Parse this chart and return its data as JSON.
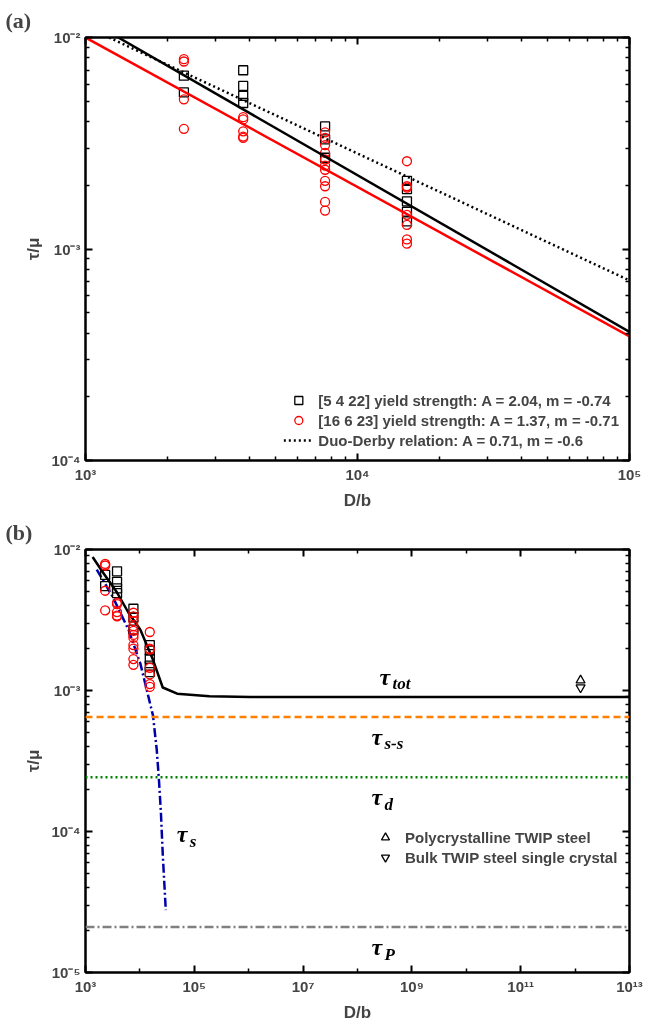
{
  "chart_data": [
    {
      "type": "scatter",
      "title": "(a)",
      "xlabel": "D/b",
      "ylabel": "τ/μ",
      "log": "xy",
      "legend": "bottom right",
      "xlim": [
        1000,
        100000
      ],
      "ylim": [
        0.0001,
        0.01
      ],
      "xticks": [
        {
          "value": 1000,
          "label": "10³"
        },
        {
          "value": 2000,
          "label": null
        },
        {
          "value": 3000,
          "label": null
        },
        {
          "value": 4000,
          "label": null
        },
        {
          "value": 5000,
          "label": null
        },
        {
          "value": 6000,
          "label": null
        },
        {
          "value": 7000,
          "label": null
        },
        {
          "value": 8000,
          "label": null
        },
        {
          "value": 9000,
          "label": null
        },
        {
          "value": 10000,
          "label": "10⁴"
        },
        {
          "value": 20000,
          "label": null
        },
        {
          "value": 30000,
          "label": null
        },
        {
          "value": 40000,
          "label": null
        },
        {
          "value": 50000,
          "label": null
        },
        {
          "value": 60000,
          "label": null
        },
        {
          "value": 70000,
          "label": null
        },
        {
          "value": 80000,
          "label": null
        },
        {
          "value": 90000,
          "label": null
        },
        {
          "value": 100000,
          "label": "10⁵"
        }
      ],
      "yticks": [
        {
          "value": 0.0001,
          "label": "10⁻⁴"
        },
        {
          "value": 0.0002,
          "label": null
        },
        {
          "value": 0.0003,
          "label": null
        },
        {
          "value": 0.0004,
          "label": null
        },
        {
          "value": 0.0005,
          "label": null
        },
        {
          "value": 0.0006,
          "label": null
        },
        {
          "value": 0.0007,
          "label": null
        },
        {
          "value": 0.0008,
          "label": null
        },
        {
          "value": 0.0009,
          "label": null
        },
        {
          "value": 0.001,
          "label": "10⁻³"
        },
        {
          "value": 0.002,
          "label": null
        },
        {
          "value": 0.003,
          "label": null
        },
        {
          "value": 0.004,
          "label": null
        },
        {
          "value": 0.005,
          "label": null
        },
        {
          "value": 0.006,
          "label": null
        },
        {
          "value": 0.007,
          "label": null
        },
        {
          "value": 0.008,
          "label": null
        },
        {
          "value": 0.009,
          "label": null
        },
        {
          "value": 0.01,
          "label": "10⁻²"
        }
      ],
      "series": [
        {
          "name": "[5 4 22] yield strength: A = 2.04, m = -0.74",
          "color": "#000000",
          "marker": "square",
          "x": [
            2300,
            2300,
            3800,
            3800,
            3800,
            3800,
            7600,
            7600,
            7600,
            15200,
            15200,
            15200,
            15200,
            15200
          ],
          "values": [
            0.0066,
            0.0055,
            0.007,
            0.0059,
            0.0053,
            0.0049,
            0.0038,
            0.0033,
            0.0027,
            0.0021,
            0.00192,
            0.00168,
            0.0015,
            0.00135
          ]
        },
        {
          "name": "[16 6 23] yield strength: A = 1.37, m = -0.71",
          "color": "#ff0000",
          "marker": "circle",
          "x": [
            2300,
            2300,
            2300,
            2300,
            3800,
            3800,
            3800,
            3800,
            3800,
            7600,
            7600,
            7600,
            7600,
            7600,
            7600,
            7600,
            7600,
            7600,
            7600,
            7600,
            15200,
            15200,
            15200,
            15200,
            15200,
            15200,
            15200
          ],
          "values": [
            0.0079,
            0.0077,
            0.0051,
            0.0037,
            0.0042,
            0.0041,
            0.0036,
            0.0034,
            0.00335,
            0.00356,
            0.00335,
            0.0031,
            0.00285,
            0.00265,
            0.00248,
            0.00237,
            0.0021,
            0.00198,
            0.00167,
            0.00152,
            0.0026,
            0.00198,
            0.00195,
            0.00145,
            0.0013,
            0.00111,
            0.00106
          ]
        },
        {
          "type": "line",
          "color": "#000000",
          "line_style": "solid",
          "x": [
            1320,
            100000
          ],
          "values": [
            0.01,
            0.000406
          ]
        },
        {
          "type": "line",
          "color": "#ff0000",
          "line_style": "solid",
          "x": [
            1000,
            100000
          ],
          "values": [
            0.01,
            0.000386
          ]
        },
        {
          "type": "line",
          "name": "Duo-Derby relation: A = 0.71, m = -0.6",
          "color": "#000000",
          "line_style": "dotted",
          "x": [
            1220,
            100000
          ],
          "values": [
            0.01,
            0.00071
          ]
        }
      ]
    },
    {
      "type": "scatter",
      "title": "(b)",
      "xlabel": "D/b",
      "ylabel": "τ/μ",
      "log": "xy",
      "legend": "right",
      "xlim": [
        1000,
        10000000000000
      ],
      "ylim": [
        1e-05,
        0.01
      ],
      "xticks": [
        {
          "value": 1000,
          "label": "10³"
        },
        {
          "value": 10000,
          "label": null
        },
        {
          "value": 100000,
          "label": "10⁵"
        },
        {
          "value": 1000000,
          "label": null
        },
        {
          "value": 10000000,
          "label": "10⁷"
        },
        {
          "value": 100000000,
          "label": null
        },
        {
          "value": 1000000000,
          "label": "10⁹"
        },
        {
          "value": 10000000000,
          "label": null
        },
        {
          "value": 100000000000,
          "label": "10¹¹"
        },
        {
          "value": 1000000000000,
          "label": null
        },
        {
          "value": 10000000000000,
          "label": "10¹³"
        }
      ],
      "yticks": [
        {
          "value": 1e-05,
          "label": "10⁻⁵"
        },
        {
          "value": 2e-05,
          "label": null
        },
        {
          "value": 3e-05,
          "label": null
        },
        {
          "value": 4e-05,
          "label": null
        },
        {
          "value": 5e-05,
          "label": null
        },
        {
          "value": 6e-05,
          "label": null
        },
        {
          "value": 7e-05,
          "label": null
        },
        {
          "value": 8e-05,
          "label": null
        },
        {
          "value": 9e-05,
          "label": null
        },
        {
          "value": 0.0001,
          "label": "10⁻⁴"
        },
        {
          "value": 0.0002,
          "label": null
        },
        {
          "value": 0.0003,
          "label": null
        },
        {
          "value": 0.0004,
          "label": null
        },
        {
          "value": 0.0005,
          "label": null
        },
        {
          "value": 0.0006,
          "label": null
        },
        {
          "value": 0.0007,
          "label": null
        },
        {
          "value": 0.0008,
          "label": null
        },
        {
          "value": 0.0009,
          "label": null
        },
        {
          "value": 0.001,
          "label": "10⁻³"
        },
        {
          "value": 0.002,
          "label": null
        },
        {
          "value": 0.003,
          "label": null
        },
        {
          "value": 0.004,
          "label": null
        },
        {
          "value": 0.005,
          "label": null
        },
        {
          "value": 0.006,
          "label": null
        },
        {
          "value": 0.007,
          "label": null
        },
        {
          "value": 0.008,
          "label": null
        },
        {
          "value": 0.009,
          "label": null
        },
        {
          "value": 0.01,
          "label": "10⁻²"
        }
      ],
      "ref_lines": [
        {
          "axis": "y",
          "value": 0.00065,
          "label": "τ$_{s-s}$",
          "color": "#ff8000",
          "line_style": "dashed"
        },
        {
          "axis": "y",
          "value": 0.000243,
          "label": "τ$_{d}$",
          "color": "#008000",
          "line_style": "dotted"
        },
        {
          "axis": "y",
          "value": 2.1e-05,
          "label": "τ$_{P}$",
          "color": "#808080",
          "line_style": "dashdot"
        }
      ],
      "annotations": [
        {
          "text": "τ$_{tot}$",
          "x": 140000000,
          "y": 0.0009
        },
        {
          "text": "τ$_{s}$",
          "x": 26300,
          "y": 6.9e-05
        }
      ],
      "series": [
        {
          "type": "line",
          "color": "#000000",
          "line_style": "solid",
          "x": [
            1350,
            2190,
            3670,
            6170,
            10200,
            17400,
            26300,
            48400,
            190000,
            1070000,
            10000000000000
          ],
          "values": [
            0.00885,
            0.0067,
            0.00506,
            0.00356,
            0.0027,
            0.00165,
            0.00105,
            0.00095,
            0.00091,
            0.0009,
            0.0009
          ]
        },
        {
          "type": "line",
          "color": "#0000aa",
          "line_style": "dashdot",
          "x": [
            1610,
            3090,
            6170,
            10200,
            17400,
            20400,
            22400,
            24300,
            26300,
            29900
          ],
          "values": [
            0.0072,
            0.0047,
            0.0027,
            0.00155,
            0.000665,
            0.00038,
            0.000232,
            0.000138,
            6.9e-05,
            2.77e-05
          ]
        },
        {
          "color": "#000000",
          "marker": "square",
          "x": [
            2300,
            2300,
            3800,
            3800,
            3800,
            3800,
            7600,
            7600,
            7600,
            15200,
            15200,
            15200,
            15200,
            15200
          ],
          "values": [
            0.0066,
            0.0055,
            0.007,
            0.0059,
            0.0053,
            0.0049,
            0.0038,
            0.0033,
            0.0027,
            0.0021,
            0.00192,
            0.00168,
            0.0015,
            0.00135
          ]
        },
        {
          "color": "#ff0000",
          "marker": "circle",
          "x": [
            2300,
            2300,
            2300,
            2300,
            3800,
            3800,
            3800,
            3800,
            3800,
            7600,
            7600,
            7600,
            7600,
            7600,
            7600,
            7600,
            7600,
            7600,
            7600,
            7600,
            15200,
            15200,
            15200,
            15200,
            15200,
            15200,
            15200
          ],
          "values": [
            0.0079,
            0.0077,
            0.0051,
            0.0037,
            0.0042,
            0.0041,
            0.0036,
            0.0034,
            0.00335,
            0.00356,
            0.00335,
            0.0031,
            0.00285,
            0.00265,
            0.00248,
            0.00237,
            0.0021,
            0.00198,
            0.00167,
            0.00152,
            0.0026,
            0.00198,
            0.00195,
            0.00145,
            0.0013,
            0.00111,
            0.00106
          ]
        },
        {
          "name": "Polycrystalline TWIP steel",
          "color": "#000000",
          "marker": "triangle",
          "x": [
            1260000000000
          ],
          "values": [
            0.00118
          ]
        },
        {
          "name": "Bulk TWIP steel single crystal",
          "color": "#000000",
          "x": [
            1260000000000
          ],
          "values": [
            0.00105
          ]
        }
      ]
    }
  ]
}
